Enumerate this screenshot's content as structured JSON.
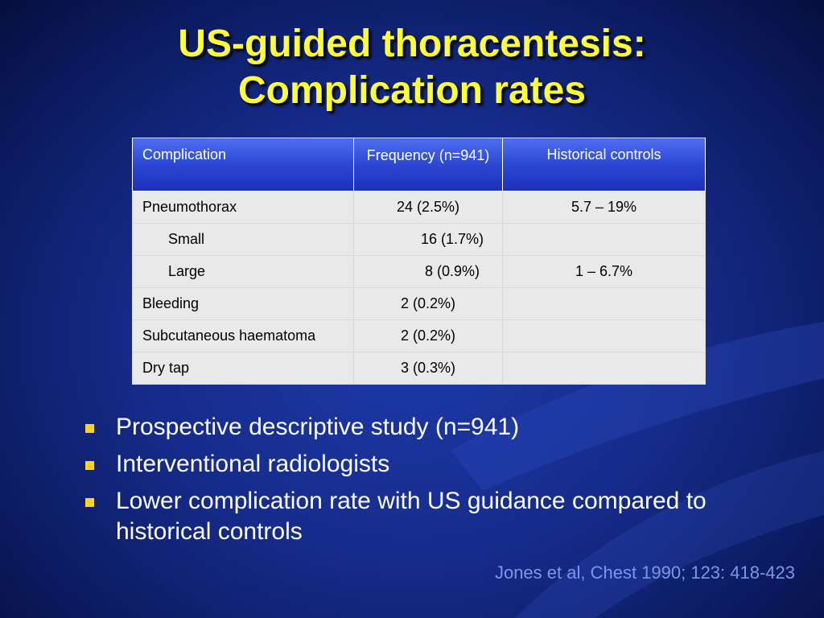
{
  "slide": {
    "title_line1": "US-guided thoracentesis:",
    "title_line2": "Complication rates"
  },
  "table": {
    "headers": {
      "complication": "Complication",
      "frequency": "Frequency (n=941)",
      "historical": "Historical controls"
    },
    "rows": [
      {
        "complication": "Pneumothorax",
        "frequency": "24 (2.5%)",
        "historical": "5.7 – 19%"
      },
      {
        "complication": "Small",
        "frequency": "16 (1.7%)",
        "historical": ""
      },
      {
        "complication": "Large",
        "frequency": "8 (0.9%)",
        "historical": "1 – 6.7%"
      },
      {
        "complication": "Bleeding",
        "frequency": "2 (0.2%)",
        "historical": ""
      },
      {
        "complication": "Subcutaneous haematoma",
        "frequency": "2 (0.2%)",
        "historical": ""
      },
      {
        "complication": "Dry tap",
        "frequency": "3 (0.3%)",
        "historical": ""
      }
    ]
  },
  "bullets": [
    "Prospective descriptive study (n=941)",
    "Interventional radiologists",
    "Lower complication rate with US guidance compared to historical controls"
  ],
  "citation": "Jones et al, Chest 1990; 123: 418-423",
  "colors": {
    "title": "#ffff33",
    "bullet_marker": "#ffd21f",
    "citation": "#7f96e8",
    "header_fill": "#2b47d3",
    "cell_fill": "#e9e9ea"
  }
}
